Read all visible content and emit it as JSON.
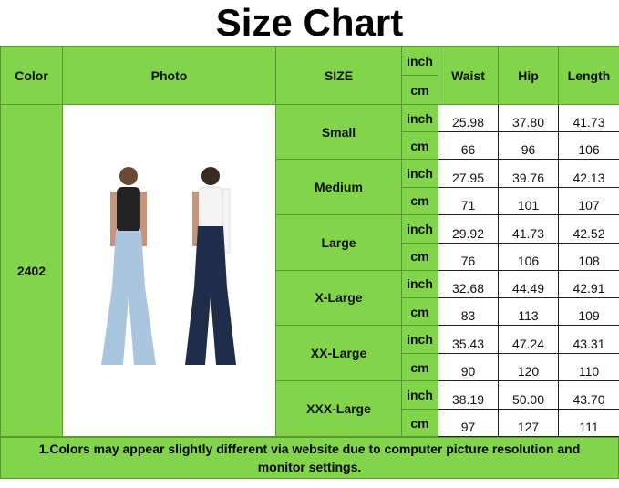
{
  "title": "Size Chart",
  "headers": {
    "color": "Color",
    "photo": "Photo",
    "size": "SIZE",
    "unit_inch": "inch",
    "unit_cm": "cm",
    "waist": "Waist",
    "hip": "Hip",
    "length": "Length"
  },
  "color_code": "2402",
  "sizes": [
    {
      "name": "Small",
      "inch": [
        "25.98",
        "37.80",
        "41.73"
      ],
      "cm": [
        "66",
        "96",
        "106"
      ]
    },
    {
      "name": "Medium",
      "inch": [
        "27.95",
        "39.76",
        "42.13"
      ],
      "cm": [
        "71",
        "101",
        "107"
      ]
    },
    {
      "name": "Large",
      "inch": [
        "29.92",
        "41.73",
        "42.52"
      ],
      "cm": [
        "76",
        "106",
        "108"
      ]
    },
    {
      "name": "X-Large",
      "inch": [
        "32.68",
        "44.49",
        "42.91"
      ],
      "cm": [
        "83",
        "113",
        "109"
      ]
    },
    {
      "name": "XX-Large",
      "inch": [
        "35.43",
        "47.24",
        "43.31"
      ],
      "cm": [
        "90",
        "120",
        "110"
      ]
    },
    {
      "name": "XXX-Large",
      "inch": [
        "38.19",
        "50.00",
        "43.70"
      ],
      "cm": [
        "97",
        "127",
        "111"
      ]
    }
  ],
  "note": "1.Colors may appear slightly different via website due to computer picture resolution and monitor settings.",
  "colors": {
    "green": "#82d44a",
    "light_jeans": "#a9c6de",
    "dark_jeans": "#1f2d4a"
  }
}
